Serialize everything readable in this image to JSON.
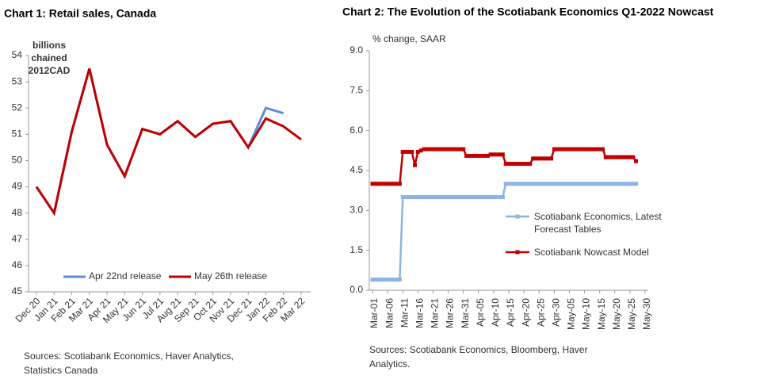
{
  "chart_data": [
    {
      "type": "line",
      "title": "Chart 1: Retail sales, Canada",
      "y_label": [
        "billions",
        "chained",
        "2012CAD"
      ],
      "categories": [
        "Dec 20",
        "Jan 21",
        "Feb 21",
        "Mar 21",
        "Apr 21",
        "May 21",
        "Jun 21",
        "Jul 21",
        "Aug 21",
        "Sep 21",
        "Oct 21",
        "Nov 21",
        "Dec 21",
        "Jan 22",
        "Feb 22",
        "Mar 22"
      ],
      "series": [
        {
          "name": "Apr 22nd release",
          "color": "#5b8fd6",
          "values": [
            49.0,
            48.0,
            51.1,
            53.5,
            50.6,
            49.4,
            51.2,
            51.0,
            51.5,
            50.9,
            51.4,
            51.5,
            50.5,
            52.0,
            51.8,
            null
          ]
        },
        {
          "name": "May 26th release",
          "color": "#c00000",
          "values": [
            49.0,
            48.0,
            51.1,
            53.5,
            50.6,
            49.4,
            51.2,
            51.0,
            51.5,
            50.9,
            51.4,
            51.5,
            50.5,
            51.6,
            51.3,
            50.8
          ]
        }
      ],
      "ylim": [
        45,
        54
      ],
      "yticks": [
        45,
        46,
        47,
        48,
        49,
        50,
        51,
        52,
        53,
        54
      ],
      "legend": "bottom",
      "source": [
        "Sources: Scotiabank Economics, Haver Analytics,",
        "Statistics Canada"
      ]
    },
    {
      "type": "line",
      "title": "Chart 2: The Evolution of the Scotiabank Economics Q1-2022 Nowcast",
      "y_label": [
        "% change, SAAR"
      ],
      "categories": [
        "Mar-01",
        null,
        null,
        null,
        null,
        "Mar-06",
        null,
        null,
        null,
        null,
        "Mar-11",
        null,
        null,
        null,
        null,
        "Mar-16",
        null,
        null,
        null,
        null,
        "Mar-21",
        null,
        null,
        null,
        null,
        "Mar-26",
        null,
        null,
        null,
        null,
        "Mar-31",
        null,
        null,
        null,
        null,
        "Apr-05",
        null,
        null,
        null,
        null,
        "Apr-10",
        null,
        null,
        null,
        null,
        "Apr-15",
        null,
        null,
        null,
        null,
        "Apr-20",
        null,
        null,
        null,
        null,
        "Apr-25",
        null,
        null,
        null,
        null,
        "Apr-30",
        null,
        null,
        null,
        null,
        "May-05",
        null,
        null,
        null,
        null,
        "May-10",
        null,
        null,
        null,
        null,
        "May-15",
        null,
        null,
        null,
        null,
        "May-20",
        null,
        null,
        null,
        null,
        "May-25",
        null,
        null,
        null,
        null,
        "May-30"
      ],
      "series": [
        {
          "name": "Scotiabank Economics, Latest Forecast Tables",
          "color": "#8db4e2",
          "values": [
            0.4,
            0.4,
            0.4,
            0.4,
            0.4,
            0.4,
            0.4,
            0.4,
            0.4,
            0.4,
            3.5,
            3.5,
            3.5,
            3.5,
            3.5,
            3.5,
            3.5,
            3.5,
            3.5,
            3.5,
            3.5,
            3.5,
            3.5,
            3.5,
            3.5,
            3.5,
            3.5,
            3.5,
            3.5,
            3.5,
            3.5,
            3.5,
            3.5,
            3.5,
            3.5,
            3.5,
            3.5,
            3.5,
            3.5,
            3.5,
            3.5,
            3.5,
            3.5,
            3.5,
            4.0,
            4.0,
            4.0,
            4.0,
            4.0,
            4.0,
            4.0,
            4.0,
            4.0,
            4.0,
            4.0,
            4.0,
            4.0,
            4.0,
            4.0,
            4.0,
            4.0,
            4.0,
            4.0,
            4.0,
            4.0,
            4.0,
            4.0,
            4.0,
            4.0,
            4.0,
            4.0,
            4.0,
            4.0,
            4.0,
            4.0,
            4.0,
            4.0,
            4.0,
            4.0,
            4.0,
            4.0,
            4.0,
            4.0,
            4.0,
            4.0,
            4.0,
            4.0,
            4.0,
            null,
            null,
            null
          ]
        },
        {
          "name": "Scotiabank Nowcast Model",
          "color": "#c00000",
          "values": [
            4.0,
            4.0,
            4.0,
            4.0,
            4.0,
            4.0,
            4.0,
            4.0,
            4.0,
            4.0,
            5.2,
            5.2,
            5.2,
            5.2,
            4.7,
            5.2,
            5.25,
            5.3,
            5.3,
            5.3,
            5.3,
            5.3,
            5.3,
            5.3,
            5.3,
            5.3,
            5.3,
            5.3,
            5.3,
            5.3,
            5.3,
            5.05,
            5.05,
            5.05,
            5.05,
            5.05,
            5.05,
            5.05,
            5.05,
            5.1,
            5.1,
            5.1,
            5.1,
            5.1,
            4.75,
            4.75,
            4.75,
            4.75,
            4.75,
            4.75,
            4.75,
            4.75,
            4.75,
            4.95,
            4.95,
            4.95,
            4.95,
            4.95,
            4.95,
            4.95,
            5.3,
            5.3,
            5.3,
            5.3,
            5.3,
            5.3,
            5.3,
            5.3,
            5.3,
            5.3,
            5.3,
            5.3,
            5.3,
            5.3,
            5.3,
            5.3,
            5.3,
            5.0,
            5.0,
            5.0,
            5.0,
            5.0,
            5.0,
            5.0,
            5.0,
            5.0,
            5.0,
            4.85,
            null,
            null,
            null
          ]
        }
      ],
      "ylim": [
        0,
        9
      ],
      "yticks": [
        {
          "value": 0,
          "label": "0.0"
        },
        1.5,
        {
          "value": 3,
          "label": "3.0"
        },
        4.5,
        {
          "value": 6,
          "label": "6.0"
        },
        7.5,
        {
          "value": 9,
          "label": "9.0"
        }
      ],
      "legend": "right",
      "markers": true,
      "source": [
        "Sources: Scotiabank Economics, Bloomberg, Haver",
        "Analytics."
      ]
    }
  ]
}
